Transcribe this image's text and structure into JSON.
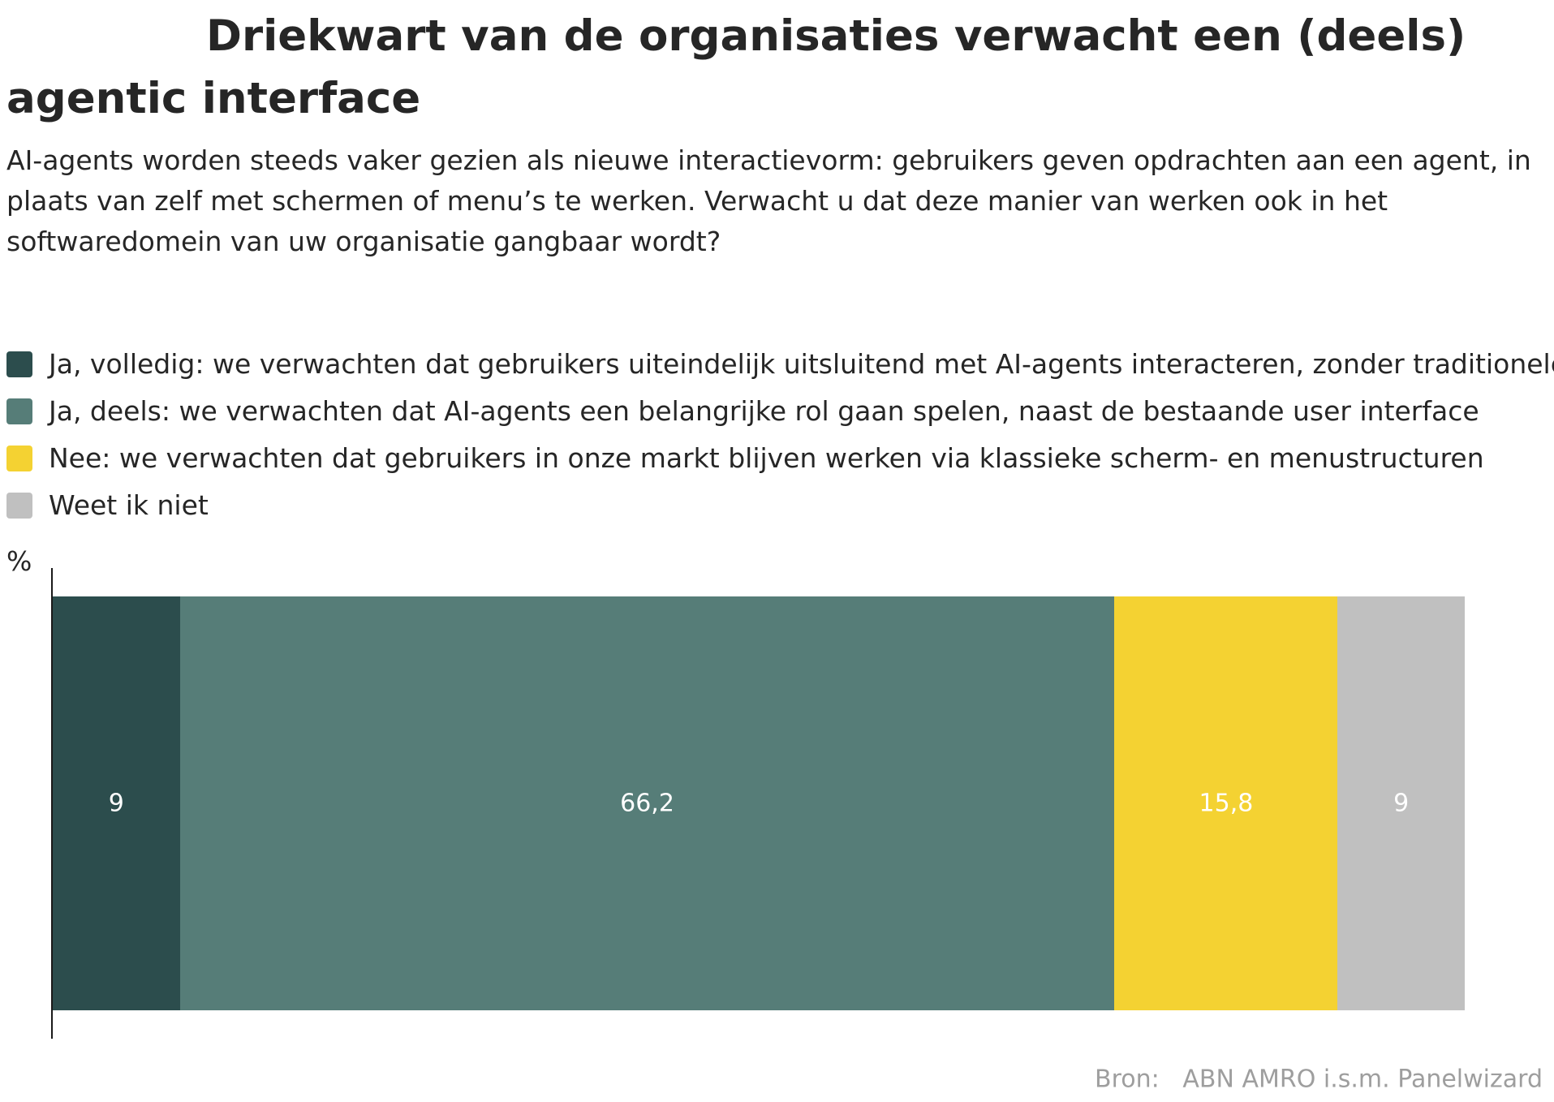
{
  "chart_data": {
    "type": "bar",
    "orientation": "horizontal-stacked",
    "title": "Driekwart van de organisaties verwacht een (deels) agentic interface",
    "subtitle": "AI-agents worden steeds vaker gezien als nieuwe interactievorm: gebruikers geven opdrachten aan een agent, in plaats van zelf met schermen of menu’s te werken. Verwacht u dat deze manier van werken ook in het softwaredomein van uw organisatie gangbaar wordt?",
    "unit": "%",
    "legend_position": "top",
    "grid": false,
    "series": [
      {
        "name": "Ja, volledig: we verwachten dat gebruikers uiteindelijk uitsluitend met AI-agents interacteren, zonder traditionele s",
        "value": 9,
        "label": "9",
        "color": "#2c4d4d"
      },
      {
        "name": "Ja, deels: we verwachten dat AI-agents een belangrijke rol gaan spelen, naast de bestaande user interface",
        "value": 66.2,
        "label": "66,2",
        "color": "#567d78"
      },
      {
        "name": "Nee: we verwachten dat gebruikers in onze markt blijven werken via klassieke scherm- en menustructuren",
        "value": 15.8,
        "label": "15,8",
        "color": "#f4d232"
      },
      {
        "name": "Weet ik niet",
        "value": 9,
        "label": "9",
        "color": "#c0c0c0"
      }
    ],
    "source_label": "Bron:",
    "source": "ABN AMRO i.s.m. Panelwizard"
  }
}
